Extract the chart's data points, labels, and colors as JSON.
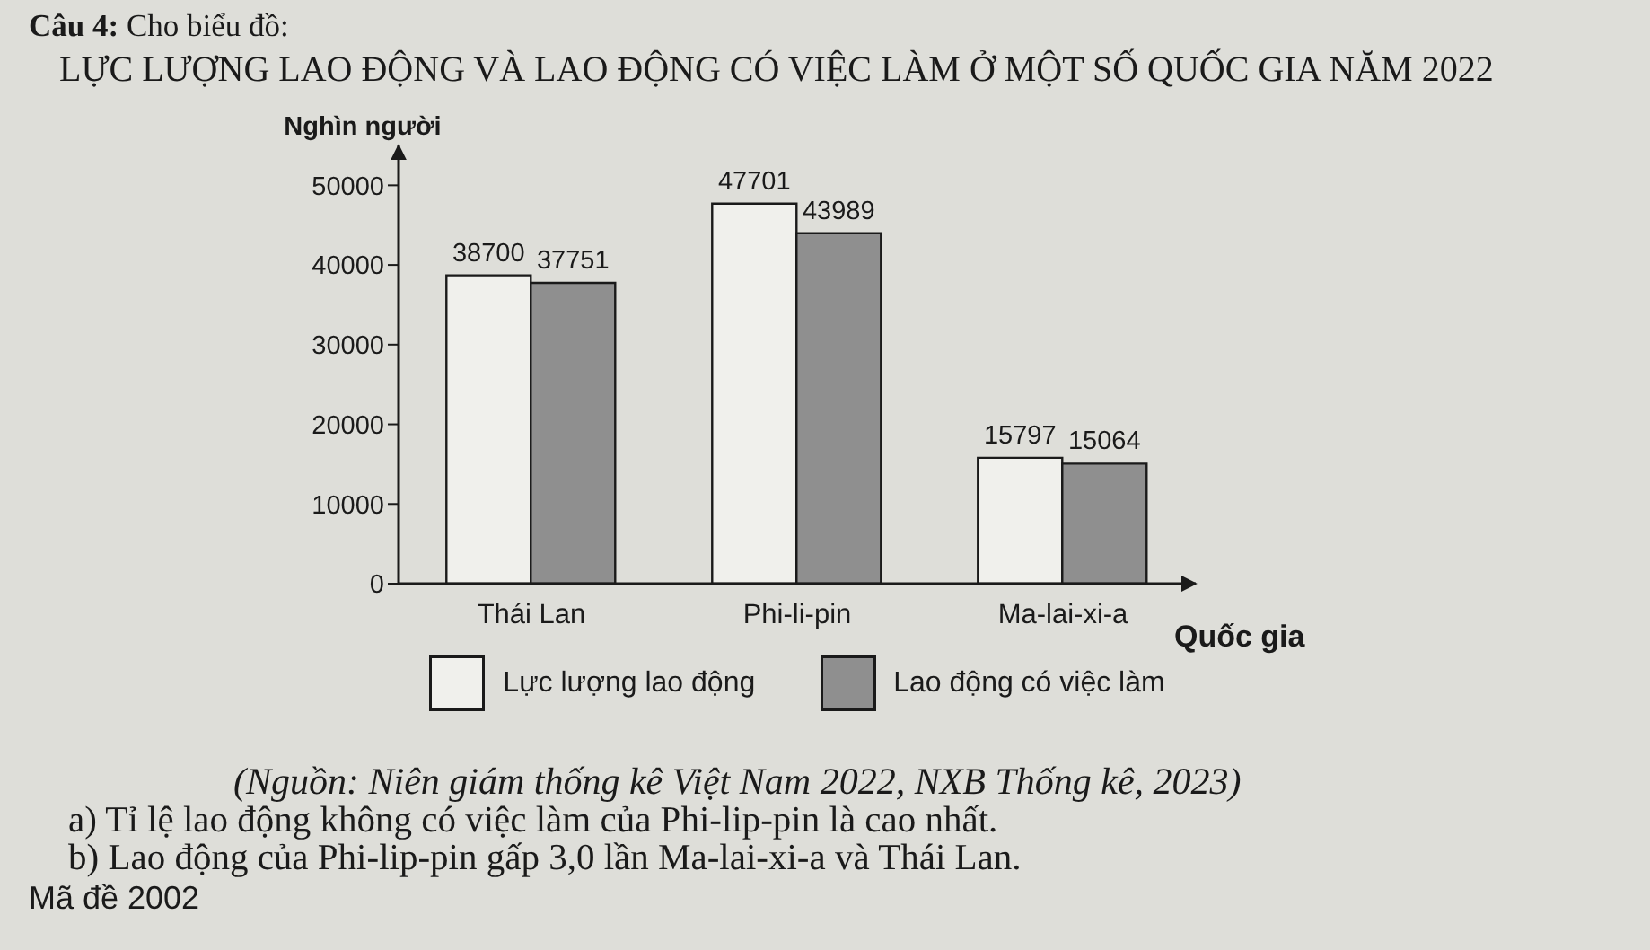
{
  "chart_data": {
    "type": "bar",
    "title": "LỰC LƯỢNG LAO ĐỘNG VÀ LAO ĐỘNG CÓ VIỆC LÀM Ở MỘT SỐ QUỐC GIA NĂM 2022",
    "xlabel": "Quốc gia",
    "ylabel": "Nghìn người",
    "categories": [
      "Thái Lan",
      "Phi-li-pin",
      "Ma-lai-xi-a"
    ],
    "series": [
      {
        "name": "Lực lượng lao động",
        "color": "#f0f0ec",
        "values": [
          38700,
          47701,
          15797
        ]
      },
      {
        "name": "Lao động có việc làm",
        "color": "#8f8f8f",
        "values": [
          37751,
          43989,
          15064
        ]
      }
    ],
    "ylim": [
      0,
      55000
    ],
    "yticks": [
      0,
      10000,
      20000,
      30000,
      40000,
      50000
    ],
    "data_labels": true,
    "legend": "bottom",
    "annotations": [
      "Câu 4: Cho biểu đồ:",
      "(Nguồn: Niên giám thống kê Việt Nam 2022, NXB Thống kê, 2023)",
      "a) Tỉ lệ lao động không có việc làm của Phi-lip-pin là cao nhất.",
      "b) Lao động của Phi-lip-pin gấp 3,0 lần Ma-lai-xi-a và Thái Lan.",
      "Mã đề 2002"
    ]
  }
}
